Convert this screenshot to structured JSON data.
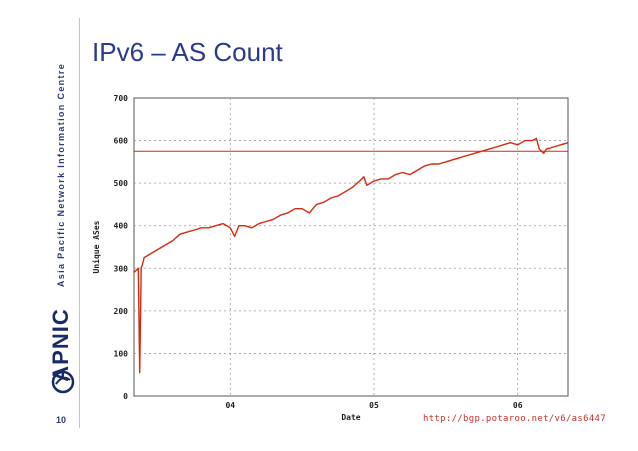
{
  "slide": {
    "title": "IPv6 – AS Count",
    "number": "10",
    "org_name": "Asia Pacific Network Information Centre",
    "logo_text": "APNIC",
    "source_url": "http://bgp.potaroo.net/v6/as6447",
    "accent_color": "#2a3a8c"
  },
  "chart_data": {
    "type": "line",
    "title": "",
    "xlabel": "Date",
    "ylabel": "Unique ASes",
    "x_ticks": [
      "04",
      "05",
      "06"
    ],
    "x_tick_values": [
      2004.0,
      2005.0,
      2006.0
    ],
    "xlim": [
      2003.33,
      2006.35
    ],
    "ylim": [
      0,
      700
    ],
    "y_ticks": [
      "0",
      "100",
      "200",
      "300",
      "400",
      "500",
      "600",
      "700"
    ],
    "y_tick_values": [
      0,
      100,
      200,
      300,
      400,
      500,
      600,
      700
    ],
    "grid": true,
    "line_color": "#d42a0e",
    "reference_line": {
      "y": 575,
      "x_start": 2003.33,
      "x_end": 2006.35
    },
    "series": [
      {
        "x": [
          2003.33,
          2003.36,
          2003.37,
          2003.38,
          2003.39,
          2003.4,
          2003.45,
          2003.5,
          2003.55,
          2003.6,
          2003.65,
          2003.7,
          2003.75,
          2003.8,
          2003.85,
          2003.9,
          2003.95,
          2004.0,
          2004.03,
          2004.06,
          2004.1,
          2004.15,
          2004.2,
          2004.25,
          2004.3,
          2004.35,
          2004.4,
          2004.45,
          2004.5,
          2004.55,
          2004.6,
          2004.65,
          2004.7,
          2004.75,
          2004.8,
          2004.85,
          2004.9,
          2004.93,
          2004.95,
          2005.0,
          2005.05,
          2005.1,
          2005.15,
          2005.2,
          2005.25,
          2005.3,
          2005.35,
          2005.4,
          2005.45,
          2005.5,
          2005.55,
          2005.6,
          2005.65,
          2005.7,
          2005.75,
          2005.8,
          2005.85,
          2005.9,
          2005.95,
          2006.0,
          2006.05,
          2006.1,
          2006.13,
          2006.15,
          2006.18,
          2006.2,
          2006.25,
          2006.3,
          2006.35
        ],
        "y": [
          290,
          300,
          55,
          300,
          310,
          325,
          335,
          345,
          355,
          365,
          380,
          385,
          390,
          395,
          395,
          400,
          405,
          395,
          375,
          400,
          400,
          395,
          405,
          410,
          415,
          425,
          430,
          440,
          440,
          430,
          450,
          455,
          465,
          470,
          480,
          490,
          505,
          515,
          495,
          505,
          510,
          510,
          520,
          525,
          520,
          530,
          540,
          545,
          545,
          550,
          555,
          560,
          565,
          570,
          575,
          580,
          585,
          590,
          595,
          590,
          600,
          600,
          605,
          580,
          570,
          580,
          585,
          590,
          595
        ]
      }
    ]
  }
}
